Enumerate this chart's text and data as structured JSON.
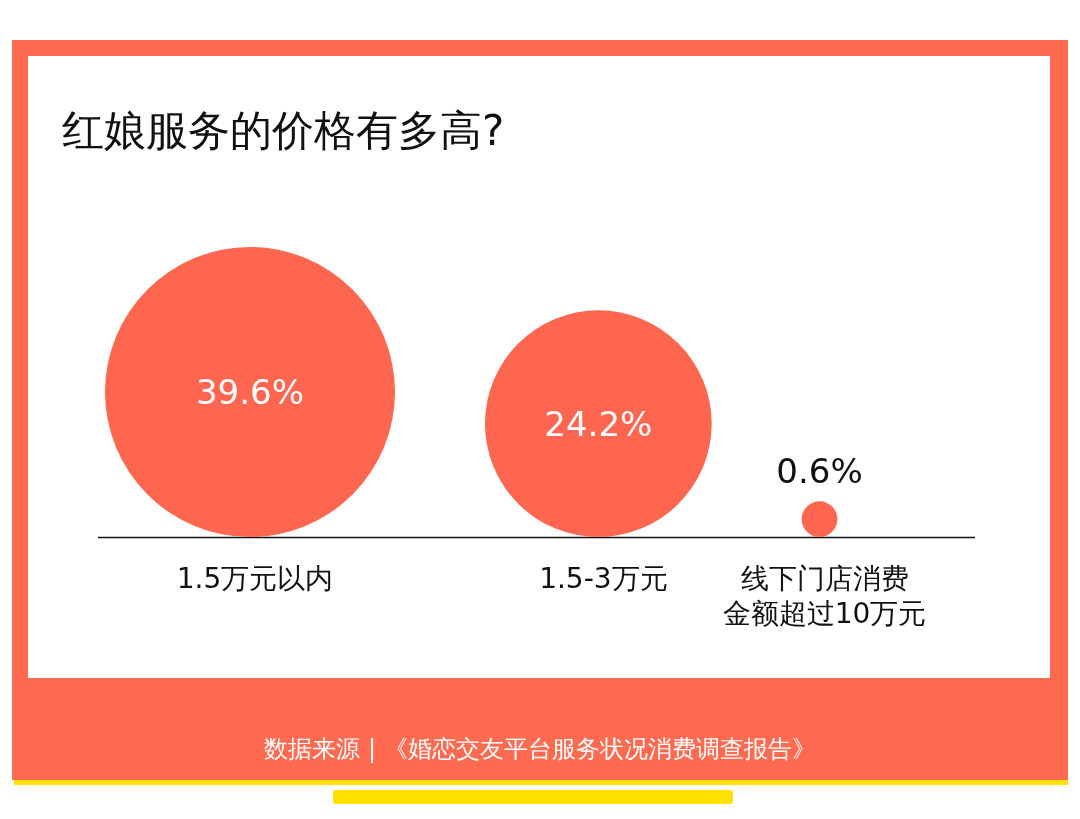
{
  "chart_data": {
    "type": "other",
    "title": "红娘服务的价格有多高?",
    "categories": [
      "1.5万元以内",
      "1.5-3万元",
      "线下门店消费金额超过10万元"
    ],
    "values": [
      39.6,
      24.2,
      0.6
    ],
    "value_labels": [
      "39.6%",
      "24.2%",
      "0.6%"
    ],
    "color": "#ff6650",
    "annotations": [
      "数据来源 | 《婚恋交友平台服务状况消费调查报告》"
    ]
  }
}
